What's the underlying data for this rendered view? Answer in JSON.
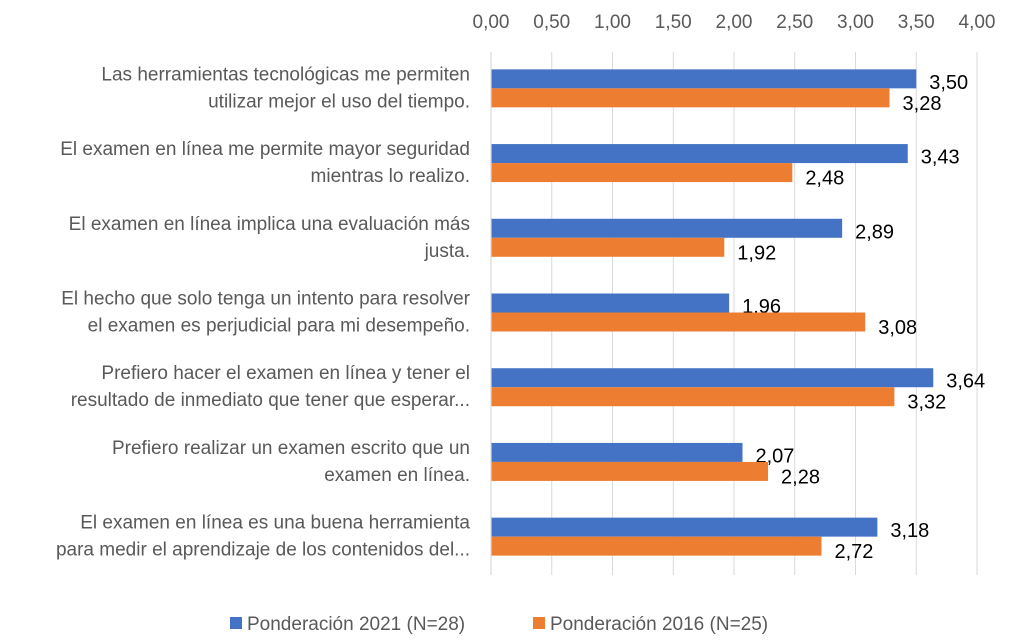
{
  "chart_data": {
    "type": "bar",
    "orientation": "horizontal",
    "categories": [
      [
        "Las herramientas tecnológicas me permiten",
        "utilizar mejor el uso del tiempo."
      ],
      [
        "El examen en línea me permite mayor seguridad",
        "mientras lo realizo."
      ],
      [
        "El examen en línea implica una evaluación más",
        "justa."
      ],
      [
        "El hecho que solo tenga un intento para resolver",
        "el examen es perjudicial para mi desempeño."
      ],
      [
        "Prefiero hacer el examen en línea y tener el",
        "resultado de inmediato que tener que esperar..."
      ],
      [
        "Prefiero realizar un examen escrito que un",
        "examen en línea."
      ],
      [
        "El examen en línea es una buena herramienta",
        "para medir el aprendizaje de los contenidos del..."
      ]
    ],
    "series": [
      {
        "name": "Ponderación 2021 (N=28)",
        "color": "#4472C4",
        "values": [
          3.5,
          3.43,
          2.89,
          1.96,
          3.64,
          2.07,
          3.18
        ],
        "labels": [
          "3,50",
          "3,43",
          "2,89",
          "1,96",
          "3,64",
          "2,07",
          "3,18"
        ]
      },
      {
        "name": "Ponderación 2016 (N=25)",
        "color": "#ED7D31",
        "values": [
          3.28,
          2.48,
          1.92,
          3.08,
          3.32,
          2.28,
          2.72
        ],
        "labels": [
          "3,28",
          "2,48",
          "1,92",
          "3,08",
          "3,32",
          "2,28",
          "2,72"
        ]
      }
    ],
    "xlim": [
      0,
      4
    ],
    "xticks": [
      "0,00",
      "0,50",
      "1,00",
      "1,50",
      "2,00",
      "2,50",
      "3,00",
      "3,50",
      "4,00"
    ],
    "x_axis_position": "top",
    "grid": true,
    "legend": "bottom"
  }
}
